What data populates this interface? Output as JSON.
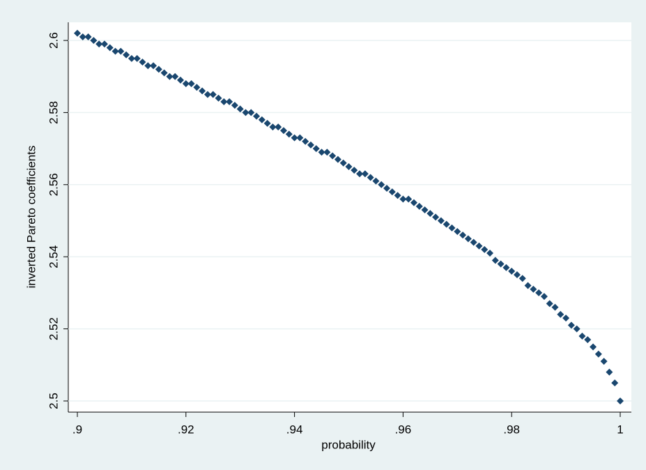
{
  "chart_data": {
    "type": "scatter",
    "x_label": "probability",
    "y_label": "inverted Pareto coefficients",
    "marker": "diamond",
    "color": "#1a476f",
    "grid": true,
    "xlim": [
      0.9,
      1
    ],
    "ylim": [
      2.5,
      2.6
    ],
    "xticks": [
      {
        "value": 0.9,
        "label": ".9"
      },
      {
        "value": 0.92,
        "label": ".92"
      },
      {
        "value": 0.94,
        "label": ".94"
      },
      {
        "value": 0.96,
        "label": ".96"
      },
      {
        "value": 0.98,
        "label": ".98"
      },
      1
    ],
    "yticks": [
      2.5,
      2.52,
      2.54,
      2.56,
      2.58,
      2.6
    ],
    "x": [
      0.9,
      0.901,
      0.902,
      0.903,
      0.904,
      0.905,
      0.906,
      0.907,
      0.908,
      0.909,
      0.91,
      0.911,
      0.912,
      0.913,
      0.914,
      0.915,
      0.916,
      0.917,
      0.918,
      0.919,
      0.92,
      0.921,
      0.922,
      0.923,
      0.924,
      0.925,
      0.926,
      0.927,
      0.928,
      0.929,
      0.93,
      0.931,
      0.932,
      0.933,
      0.934,
      0.935,
      0.936,
      0.937,
      0.938,
      0.939,
      0.94,
      0.941,
      0.942,
      0.943,
      0.944,
      0.945,
      0.946,
      0.947,
      0.948,
      0.949,
      0.95,
      0.951,
      0.952,
      0.953,
      0.954,
      0.955,
      0.956,
      0.957,
      0.958,
      0.959,
      0.96,
      0.961,
      0.962,
      0.963,
      0.964,
      0.965,
      0.966,
      0.967,
      0.968,
      0.969,
      0.97,
      0.971,
      0.972,
      0.973,
      0.974,
      0.975,
      0.976,
      0.977,
      0.978,
      0.979,
      0.98,
      0.981,
      0.982,
      0.983,
      0.984,
      0.985,
      0.986,
      0.987,
      0.988,
      0.989,
      0.99,
      0.991,
      0.992,
      0.993,
      0.994,
      0.995,
      0.996,
      0.997,
      0.998,
      0.999,
      1
    ],
    "values": [
      2.602,
      2.601,
      2.601,
      2.6,
      2.599,
      2.599,
      2.598,
      2.597,
      2.597,
      2.596,
      2.595,
      2.595,
      2.594,
      2.593,
      2.593,
      2.592,
      2.591,
      2.59,
      2.59,
      2.589,
      2.588,
      2.588,
      2.587,
      2.586,
      2.585,
      2.585,
      2.584,
      2.583,
      2.583,
      2.582,
      2.581,
      2.58,
      2.58,
      2.579,
      2.578,
      2.577,
      2.576,
      2.576,
      2.575,
      2.574,
      2.573,
      2.573,
      2.572,
      2.571,
      2.57,
      2.569,
      2.569,
      2.568,
      2.567,
      2.566,
      2.565,
      2.564,
      2.563,
      2.563,
      2.562,
      2.561,
      2.56,
      2.559,
      2.558,
      2.557,
      2.556,
      2.556,
      2.555,
      2.554,
      2.553,
      2.552,
      2.551,
      2.55,
      2.549,
      2.548,
      2.547,
      2.546,
      2.545,
      2.544,
      2.543,
      2.542,
      2.541,
      2.539,
      2.538,
      2.537,
      2.536,
      2.535,
      2.534,
      2.532,
      2.531,
      2.53,
      2.529,
      2.527,
      2.526,
      2.524,
      2.523,
      2.521,
      2.52,
      2.518,
      2.517,
      2.515,
      2.513,
      2.511,
      2.508,
      2.505,
      2.5
    ]
  }
}
